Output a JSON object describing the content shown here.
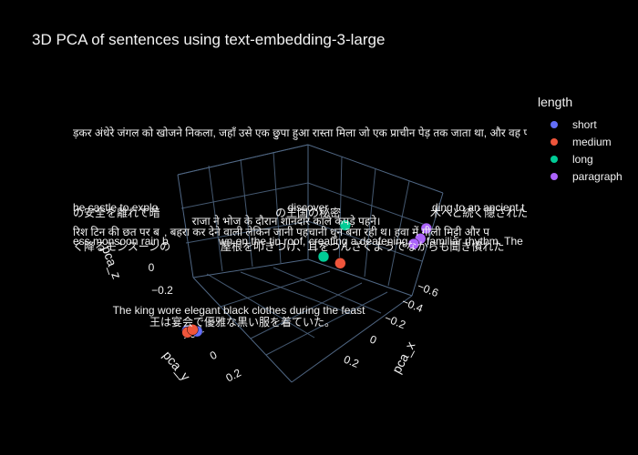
{
  "chart_data": {
    "type": "scatter",
    "title": "3D PCA of sentences using text-embedding-3-large",
    "axes": {
      "x": {
        "label": "pca_x",
        "ticks": [
          "−0.6",
          "−0.4",
          "−0.2",
          "0",
          "0.2"
        ]
      },
      "y": {
        "label": "pca_y",
        "ticks": [
          "−0.2",
          "0",
          "0.2"
        ]
      },
      "z": {
        "label": "pca_z",
        "ticks": [
          "0",
          "−0.2"
        ]
      }
    },
    "legend_title": "length",
    "legend_placement": "top-right",
    "series": [
      {
        "name": "short",
        "color": "#636efa",
        "points": [
          {
            "x": 0.35,
            "y": -0.25,
            "z": -0.25
          },
          {
            "x": 0.32,
            "y": -0.22,
            "z": -0.26
          }
        ]
      },
      {
        "name": "medium",
        "color": "#ef553b",
        "points": [
          {
            "x": 0.34,
            "y": -0.27,
            "z": -0.27
          },
          {
            "x": 0.33,
            "y": -0.24,
            "z": -0.25
          },
          {
            "x": -0.05,
            "y": 0.35,
            "z": 0.15
          }
        ]
      },
      {
        "name": "long",
        "color": "#00cc96",
        "points": [
          {
            "x": -0.05,
            "y": 0.4,
            "z": 0.4
          },
          {
            "x": 0.0,
            "y": 0.3,
            "z": 0.2
          }
        ]
      },
      {
        "name": "paragraph",
        "color": "#ab63fa",
        "points": [
          {
            "x": -0.55,
            "y": 0.05,
            "z": 0.1
          },
          {
            "x": -0.52,
            "y": 0.06,
            "z": 0.05
          },
          {
            "x": -0.5,
            "y": 0.04,
            "z": 0.02
          }
        ]
      }
    ],
    "annotations": [
      "ड़कर अंधेरे जंगल को खोजने निकला, जहाँ उसे एक छुपा हुआ रास्ता मिला जो एक प्राचीन पेड़ तक जाता था, और वह प",
      "he castle to explo",
      "discover",
      "ding to an ancient t",
      "の安全を離れて暗",
      "の王国の秘密",
      "木へと続く隠された",
      "राजा ने भोज के दौरान शानदार काले कपड़े पहने।",
      "रिश टिन की छत पर ब",
      ", बहरा कर देने वाली लेकिन जानी पहचानी धुन बना रही थ। हवा में गीली मिट्टी और प",
      "ess monsoon rain b",
      "wn on the tin roof, creating a deafening",
      "familiar rhythm. The",
      "く降るモンスーンの",
      "屋根を叩きつけ、耳をつんざくようでなからも聞き慣れた",
      "The king wore elegant black clothes during the feast",
      "王は宴会で優雅な黒い服を着ていた。"
    ]
  }
}
